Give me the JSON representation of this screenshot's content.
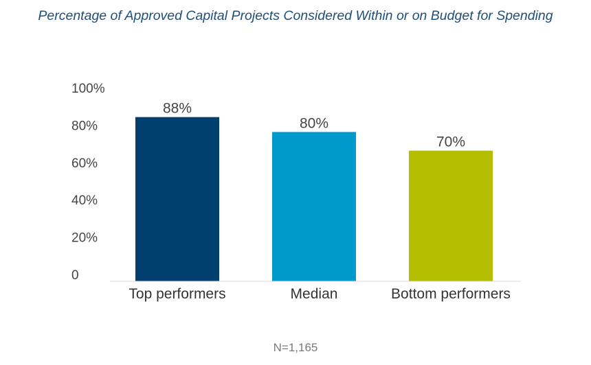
{
  "chart_data": {
    "type": "bar",
    "title": "Percentage of Approved Capital Projects Considered Within or on Budget for Spending",
    "categories": [
      "Top performers",
      "Median",
      "Bottom performers"
    ],
    "values": [
      88,
      80,
      70
    ],
    "value_labels": [
      "88%",
      "80%",
      "70%"
    ],
    "bar_colors": [
      "#003f6e",
      "#0099cc",
      "#b5bd00"
    ],
    "ylim": [
      0,
      100
    ],
    "yticks": [
      0,
      20,
      40,
      60,
      80,
      100
    ],
    "ytick_labels": [
      "0",
      "20%",
      "40%",
      "60%",
      "80%",
      "100%"
    ],
    "grid": false,
    "legend": "none",
    "note": "N=1,165"
  }
}
